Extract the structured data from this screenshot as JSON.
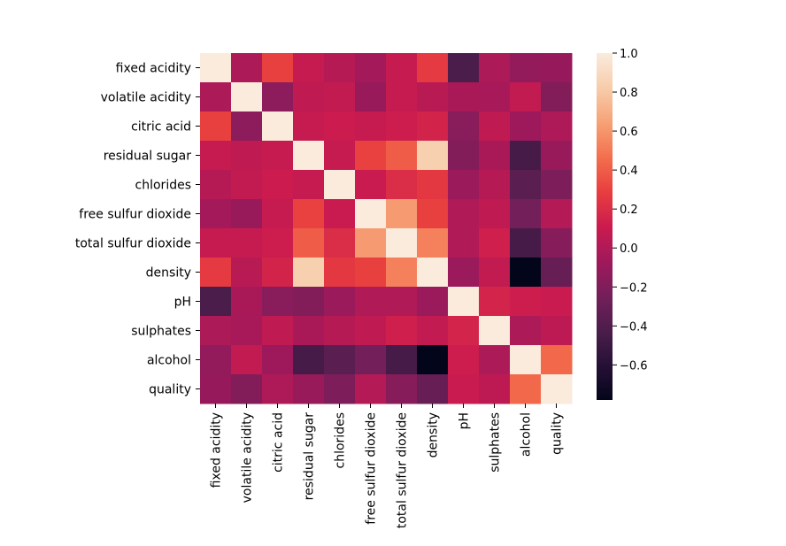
{
  "chart_data": {
    "type": "heatmap",
    "title": "",
    "xlabel": "",
    "ylabel": "",
    "row_labels": [
      "fixed acidity",
      "volatile acidity",
      "citric acid",
      "residual sugar",
      "chlorides",
      "free sulfur dioxide",
      "total sulfur dioxide",
      "density",
      "pH",
      "sulphates",
      "alcohol",
      "quality"
    ],
    "col_labels": [
      "fixed acidity",
      "volatile acidity",
      "citric acid",
      "residual sugar",
      "chlorides",
      "free sulfur dioxide",
      "total sulfur dioxide",
      "density",
      "pH",
      "sulphates",
      "alcohol",
      "quality"
    ],
    "values": [
      [
        1.0,
        -0.02,
        0.29,
        0.09,
        0.02,
        -0.05,
        0.09,
        0.27,
        -0.43,
        -0.02,
        -0.12,
        -0.11
      ],
      [
        -0.02,
        1.0,
        -0.15,
        0.06,
        0.07,
        -0.1,
        0.09,
        0.03,
        -0.03,
        -0.04,
        0.07,
        -0.19
      ],
      [
        0.29,
        -0.15,
        1.0,
        0.09,
        0.11,
        0.09,
        0.12,
        0.15,
        -0.16,
        0.06,
        -0.08,
        -0.01
      ],
      [
        0.09,
        0.06,
        0.09,
        1.0,
        0.09,
        0.3,
        0.4,
        0.84,
        -0.19,
        -0.03,
        -0.45,
        -0.1
      ],
      [
        0.02,
        0.07,
        0.11,
        0.09,
        1.0,
        0.1,
        0.2,
        0.26,
        -0.09,
        0.02,
        -0.36,
        -0.21
      ],
      [
        -0.05,
        -0.1,
        0.09,
        0.3,
        0.1,
        1.0,
        0.62,
        0.29,
        -0.0,
        0.06,
        -0.25,
        0.01
      ],
      [
        0.09,
        0.09,
        0.12,
        0.4,
        0.2,
        0.62,
        1.0,
        0.53,
        0.0,
        0.13,
        -0.45,
        -0.17
      ],
      [
        0.27,
        0.03,
        0.15,
        0.84,
        0.26,
        0.29,
        0.53,
        1.0,
        -0.09,
        0.07,
        -0.78,
        -0.31
      ],
      [
        -0.43,
        -0.03,
        -0.16,
        -0.19,
        -0.09,
        -0.0,
        0.0,
        -0.09,
        1.0,
        0.16,
        0.12,
        0.1
      ],
      [
        -0.02,
        -0.04,
        0.06,
        -0.03,
        0.02,
        0.06,
        0.13,
        0.07,
        0.16,
        1.0,
        -0.02,
        0.05
      ],
      [
        -0.12,
        0.07,
        -0.08,
        -0.45,
        -0.36,
        -0.25,
        -0.45,
        -0.78,
        0.12,
        -0.02,
        1.0,
        0.44
      ],
      [
        -0.11,
        -0.19,
        -0.01,
        -0.1,
        -0.21,
        0.01,
        -0.17,
        -0.31,
        0.1,
        0.05,
        0.44,
        1.0
      ]
    ],
    "vmin": -0.78,
    "vmax": 1.0,
    "colormap": "rocket",
    "colorbar_ticks": [
      "1.0",
      "0.8",
      "0.6",
      "0.4",
      "0.2",
      "0.0",
      "−0.2",
      "−0.4",
      "−0.6"
    ],
    "colorbar_tick_values": [
      1.0,
      0.8,
      0.6,
      0.4,
      0.2,
      0.0,
      -0.2,
      -0.4,
      -0.6
    ],
    "grid": false,
    "legend": "colorbar-right"
  }
}
